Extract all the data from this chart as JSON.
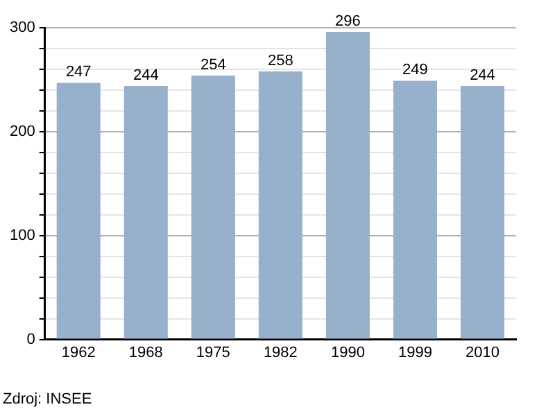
{
  "chart_data": {
    "type": "bar",
    "categories": [
      "1962",
      "1968",
      "1975",
      "1982",
      "1990",
      "1999",
      "2010"
    ],
    "values": [
      247,
      244,
      254,
      258,
      296,
      249,
      244
    ],
    "color": "#97b0cc",
    "ylim": [
      0,
      300
    ],
    "yticks": [
      0,
      {
        "value": 20,
        "label": null
      },
      {
        "value": 40,
        "label": null
      },
      {
        "value": 60,
        "label": null
      },
      {
        "value": 80,
        "label": null
      },
      100,
      {
        "value": 120,
        "label": null
      },
      {
        "value": 140,
        "label": null
      },
      {
        "value": 160,
        "label": null
      },
      {
        "value": 180,
        "label": null
      },
      200,
      {
        "value": 220,
        "label": null
      },
      {
        "value": 240,
        "label": null
      },
      {
        "value": 260,
        "label": null
      },
      {
        "value": 280,
        "label": null
      },
      300
    ],
    "grid": "y",
    "data_labels": true,
    "annotations": [
      "Zdroj: INSEE"
    ]
  }
}
